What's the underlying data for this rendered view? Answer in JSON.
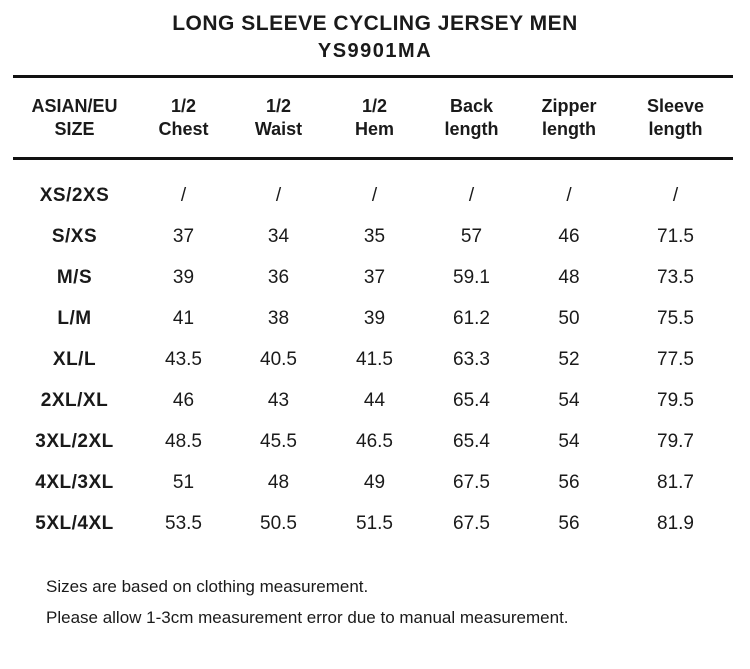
{
  "page": {
    "background_color": "#ffffff",
    "text_color": "#1a1a1a",
    "line_color": "#111111"
  },
  "chart_data": {
    "type": "table",
    "title": "LONG SLEEVE CYCLING JERSEY MEN",
    "subtitle": "YS9901MA",
    "columns": [
      {
        "lines": [
          "ASIAN/EU",
          "SIZE"
        ]
      },
      {
        "lines": [
          "1/2",
          "Chest"
        ]
      },
      {
        "lines": [
          "1/2",
          "Waist"
        ]
      },
      {
        "lines": [
          "1/2",
          "Hem"
        ]
      },
      {
        "lines": [
          "Back",
          "length"
        ]
      },
      {
        "lines": [
          "Zipper",
          "length"
        ]
      },
      {
        "lines": [
          "Sleeve",
          "length"
        ]
      }
    ],
    "rows": [
      {
        "size": "XS/2XS",
        "values": [
          "/",
          "/",
          "/",
          "/",
          "/",
          "/"
        ]
      },
      {
        "size": "S/XS",
        "values": [
          "37",
          "34",
          "35",
          "57",
          "46",
          "71.5"
        ]
      },
      {
        "size": "M/S",
        "values": [
          "39",
          "36",
          "37",
          "59.1",
          "48",
          "73.5"
        ]
      },
      {
        "size": "L/M",
        "values": [
          "41",
          "38",
          "39",
          "61.2",
          "50",
          "75.5"
        ]
      },
      {
        "size": "XL/L",
        "values": [
          "43.5",
          "40.5",
          "41.5",
          "63.3",
          "52",
          "77.5"
        ]
      },
      {
        "size": "2XL/XL",
        "values": [
          "46",
          "43",
          "44",
          "65.4",
          "54",
          "79.5"
        ]
      },
      {
        "size": "3XL/2XL",
        "values": [
          "48.5",
          "45.5",
          "46.5",
          "65.4",
          "54",
          "79.7"
        ]
      },
      {
        "size": "4XL/3XL",
        "values": [
          "51",
          "48",
          "49",
          "67.5",
          "56",
          "81.7"
        ]
      },
      {
        "size": "5XL/4XL",
        "values": [
          "53.5",
          "50.5",
          "51.5",
          "67.5",
          "56",
          "81.9"
        ]
      }
    ],
    "notes": [
      "Sizes are based on clothing measurement.",
      "Please allow 1-3cm measurement error due to manual measurement."
    ]
  }
}
